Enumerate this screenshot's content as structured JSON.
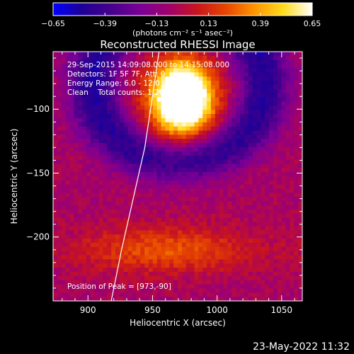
{
  "colorbar": {
    "min": -0.65,
    "max": 0.65,
    "ticks": [
      "-0.65",
      "-0.39",
      "-0.13",
      "0.13",
      "0.39",
      "0.65"
    ],
    "units_label": "(photons cm⁻² s⁻¹ asec⁻²)"
  },
  "title": "Reconstructed RHESSI Image",
  "info": {
    "line1": "29-Sep-2015 14:09:08.000 to 14:15:08.000",
    "line2": "Detectors: 1F 5F 7F, Att: 0",
    "line3": "Energy Range: 6.0 - 12.0 keV",
    "line4": "Clean    Total counts: 1.26e+04",
    "peak": "Position of Peak = [973,-90]"
  },
  "date_stamp": "23-May-2022 11:32",
  "chart_data": {
    "type": "heatmap",
    "xlabel": "Heliocentric X (arcsec)",
    "ylabel": "Heliocentric Y (arcsec)",
    "xlim": [
      873,
      1066
    ],
    "ylim": [
      -250,
      -55
    ],
    "xticks": [
      900,
      950,
      1000,
      1050
    ],
    "yticks": [
      -100,
      -150,
      -200
    ],
    "peak": [
      973,
      -90
    ],
    "colormap": [
      "#0000ff",
      "#1e0096",
      "#46008c",
      "#780096",
      "#a0006e",
      "#c8141e",
      "#e64600",
      "#ff9600",
      "#ffdc1e",
      "#ffffff"
    ],
    "grid_size": [
      60,
      60
    ],
    "limb_curve": [
      [
        955,
        -55
      ],
      [
        950,
        -90
      ],
      [
        944,
        -130
      ],
      [
        935,
        -170
      ],
      [
        926,
        -210
      ],
      [
        918,
        -250
      ]
    ]
  }
}
